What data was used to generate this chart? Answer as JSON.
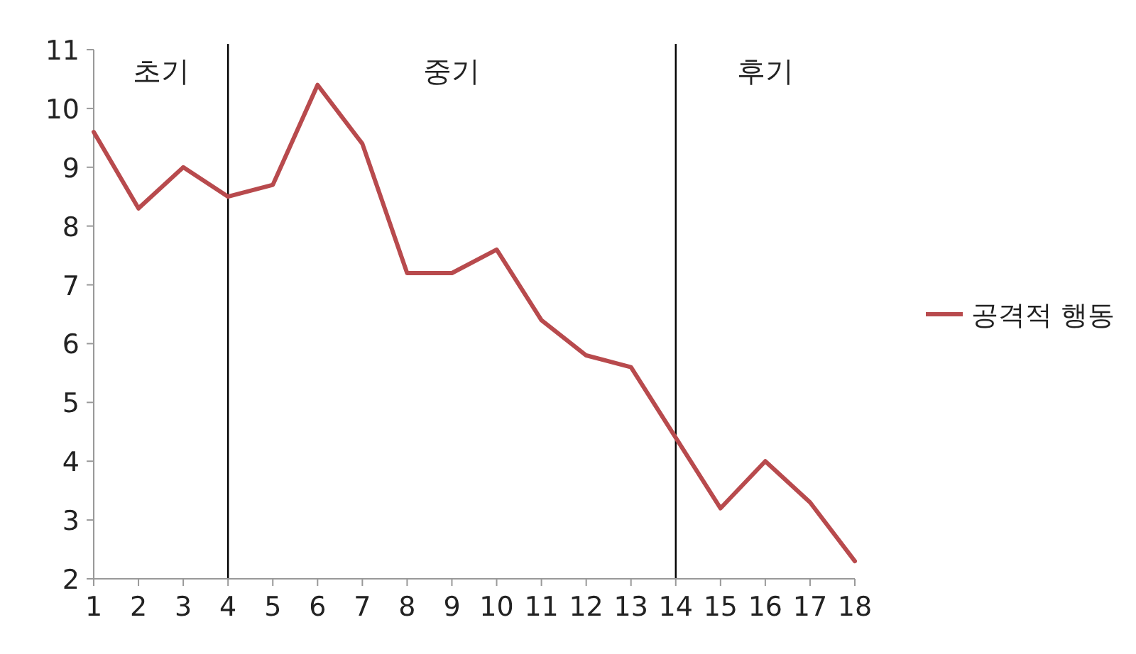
{
  "chart_data": {
    "type": "line",
    "x": [
      1,
      2,
      3,
      4,
      5,
      6,
      7,
      8,
      9,
      10,
      11,
      12,
      13,
      14,
      15,
      16,
      17,
      18
    ],
    "series": [
      {
        "name": "공격적 행동",
        "color": "#b84a4d",
        "values": [
          9.6,
          8.3,
          9.0,
          8.5,
          8.7,
          10.4,
          9.4,
          7.2,
          7.2,
          7.6,
          6.4,
          5.8,
          5.6,
          4.4,
          3.2,
          4.0,
          3.3,
          2.3
        ]
      }
    ],
    "xlim": [
      1,
      18
    ],
    "xticks": [
      1,
      2,
      3,
      4,
      5,
      6,
      7,
      8,
      9,
      10,
      11,
      12,
      13,
      14,
      15,
      16,
      17,
      18
    ],
    "ylim": [
      2,
      11
    ],
    "yticks": [
      2,
      3,
      4,
      5,
      6,
      7,
      8,
      9,
      10,
      11
    ],
    "ref_lines": [
      {
        "axis": "x",
        "value": 4,
        "color": "#000000"
      },
      {
        "axis": "x",
        "value": 14,
        "color": "#000000"
      }
    ],
    "annotations": [
      "초기",
      "중기",
      "후기"
    ],
    "legend": "right",
    "grid": false,
    "marker": "none",
    "line_style": "solid"
  }
}
